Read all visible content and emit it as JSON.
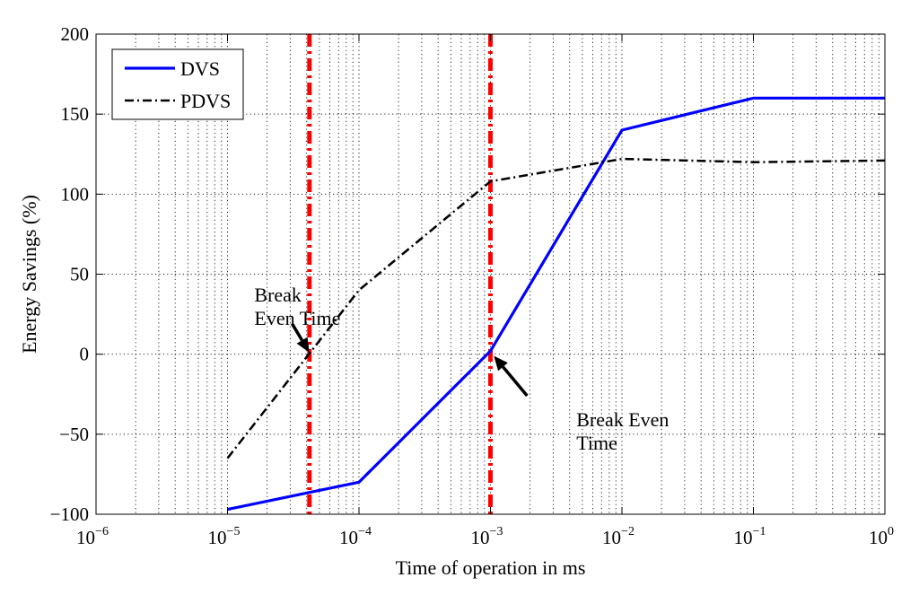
{
  "chart_data": {
    "type": "line",
    "title": "",
    "xlabel": "Time of operation in ms",
    "ylabel": "Energy Savings (%)",
    "xscale": "log",
    "xlim": [
      1e-06,
      1
    ],
    "ylim": [
      -100,
      200
    ],
    "grid": true,
    "x_ticks": [
      {
        "value": 1e-06,
        "base": "10",
        "exp": "−6"
      },
      {
        "value": 1e-05,
        "base": "10",
        "exp": "−5"
      },
      {
        "value": 0.0001,
        "base": "10",
        "exp": "−4"
      },
      {
        "value": 0.001,
        "base": "10",
        "exp": "−3"
      },
      {
        "value": 0.01,
        "base": "10",
        "exp": "−2"
      },
      {
        "value": 0.1,
        "base": "10",
        "exp": "−1"
      },
      {
        "value": 1,
        "base": "10",
        "exp": "0"
      }
    ],
    "y_ticks": [
      {
        "value": -100,
        "label": "−100"
      },
      {
        "value": -50,
        "label": "−50"
      },
      {
        "value": 0,
        "label": "0"
      },
      {
        "value": 50,
        "label": "50"
      },
      {
        "value": 100,
        "label": "100"
      },
      {
        "value": 150,
        "label": "150"
      },
      {
        "value": 200,
        "label": "200"
      }
    ],
    "legend_position": "top-left",
    "series": [
      {
        "name": "DVS",
        "color": "#0000ff",
        "style": "solid",
        "points": [
          [
            1e-05,
            -97
          ],
          [
            0.0001,
            -80
          ],
          [
            0.001,
            2
          ],
          [
            0.01,
            140
          ],
          [
            0.1,
            160
          ],
          [
            1,
            160
          ]
        ]
      },
      {
        "name": "PDVS",
        "color": "#000000",
        "style": "dashdot",
        "points": [
          [
            1e-05,
            -65
          ],
          [
            0.0001,
            40
          ],
          [
            0.001,
            108
          ],
          [
            0.01,
            122
          ],
          [
            0.1,
            120
          ],
          [
            1,
            121
          ]
        ]
      }
    ],
    "vertical_lines": [
      {
        "name": "break-even-pdvs",
        "x": 4.2e-05,
        "color": "#ff0000"
      },
      {
        "name": "break-even-dvs",
        "x": 0.001,
        "color": "#ff0000"
      }
    ],
    "annotations": [
      {
        "name": "break-even-left",
        "lines": [
          "Break",
          "Even Time"
        ],
        "text_at": [
          1.6e-05,
          33
        ],
        "arrow_from": [
          3.1e-05,
          19
        ],
        "arrow_to": [
          4.2e-05,
          1
        ]
      },
      {
        "name": "break-even-right",
        "lines": [
          "Break Even",
          "Time"
        ],
        "text_at": [
          0.0045,
          -45
        ],
        "arrow_from": [
          0.0019,
          -26
        ],
        "arrow_to": [
          0.00106,
          -1
        ]
      }
    ]
  }
}
